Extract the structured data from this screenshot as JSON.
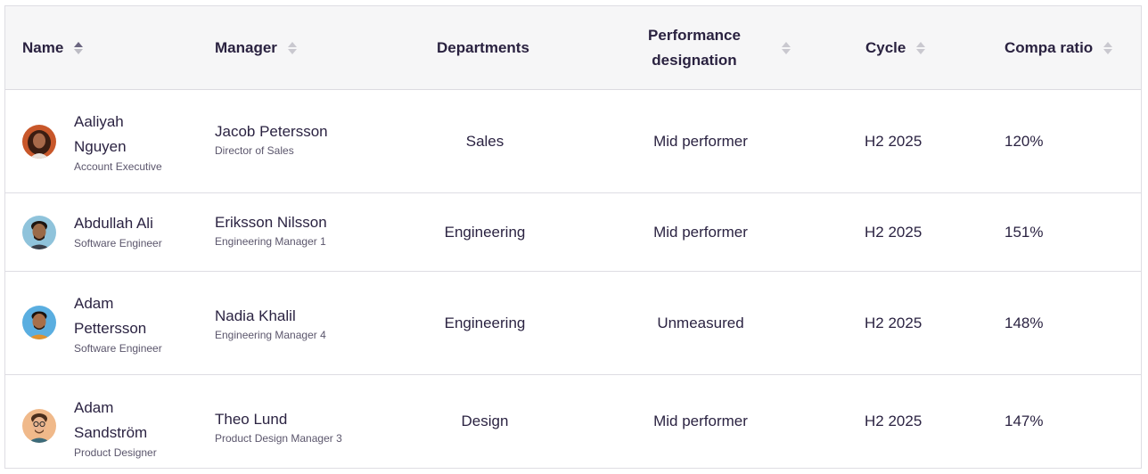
{
  "columns": {
    "name": "Name",
    "manager": "Manager",
    "departments": "Departments",
    "performance_line1": "Performance",
    "performance_line2": "designation",
    "cycle": "Cycle",
    "compa_ratio": "Compa ratio"
  },
  "rows": [
    {
      "name_line1": "Aaliyah",
      "name_line2": "Nguyen",
      "title": "Account Executive",
      "manager": "Jacob Petersson",
      "manager_title": "Director of Sales",
      "department": "Sales",
      "performance": "Mid performer",
      "cycle": "H2 2025",
      "compa_ratio": "120%"
    },
    {
      "name_line1": "Abdullah Ali",
      "name_line2": "",
      "title": "Software Engineer",
      "manager": "Eriksson Nilsson",
      "manager_title": "Engineering Manager 1",
      "department": "Engineering",
      "performance": "Mid performer",
      "cycle": "H2 2025",
      "compa_ratio": "151%"
    },
    {
      "name_line1": "Adam",
      "name_line2": "Pettersson",
      "title": "Software Engineer",
      "manager": "Nadia Khalil",
      "manager_title": "Engineering Manager 4",
      "department": "Engineering",
      "performance": "Unmeasured",
      "cycle": "H2 2025",
      "compa_ratio": "148%"
    },
    {
      "name_line1": "Adam",
      "name_line2": "Sandström",
      "title": "Product Designer",
      "manager": "Theo Lund",
      "manager_title": "Product Design Manager 3",
      "department": "Design",
      "performance": "Mid performer",
      "cycle": "H2 2025",
      "compa_ratio": "147%"
    }
  ]
}
